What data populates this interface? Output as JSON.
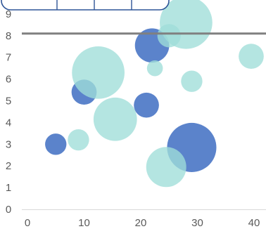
{
  "chart_data": {
    "type": "bubble",
    "x_ticks": [
      "0",
      "10",
      "20",
      "30",
      "40"
    ],
    "y_ticks": [
      "0",
      "1",
      "2",
      "3",
      "4",
      "5",
      "6",
      "7",
      "8",
      "9"
    ],
    "xlim": [
      -1,
      41
    ],
    "ylim": [
      0,
      9.4
    ],
    "grid": false,
    "reference_line": {
      "y": 8.1,
      "color": "#808080"
    },
    "legend": {
      "placement": "top-left",
      "shape": "rounded-box",
      "segments": 4,
      "border_color": "#2e5597"
    },
    "colors": {
      "dark": "#4472c4",
      "light": "#9fded9",
      "axis": "#d9d9d9"
    },
    "series": [
      {
        "color_key": "dark",
        "points": [
          {
            "x": 5,
            "y": 3.0,
            "size": 3
          },
          {
            "x": 10,
            "y": 5.4,
            "size": 5
          },
          {
            "x": 21,
            "y": 4.8,
            "size": 5
          },
          {
            "x": 22,
            "y": 7.55,
            "size": 12
          },
          {
            "x": 29,
            "y": 2.85,
            "size": 30
          }
        ]
      },
      {
        "color_key": "light",
        "points": [
          {
            "x": 9,
            "y": 3.2,
            "size": 3
          },
          {
            "x": 12.5,
            "y": 6.3,
            "size": 35
          },
          {
            "x": 15.5,
            "y": 4.15,
            "size": 22
          },
          {
            "x": 22.5,
            "y": 6.5,
            "size": 1
          },
          {
            "x": 25,
            "y": 8.0,
            "size": 4
          },
          {
            "x": 24.5,
            "y": 1.95,
            "size": 18
          },
          {
            "x": 28,
            "y": 8.6,
            "size": 35
          },
          {
            "x": 29,
            "y": 5.9,
            "size": 3
          },
          {
            "x": 39.5,
            "y": 7.05,
            "size": 5
          }
        ]
      }
    ]
  }
}
